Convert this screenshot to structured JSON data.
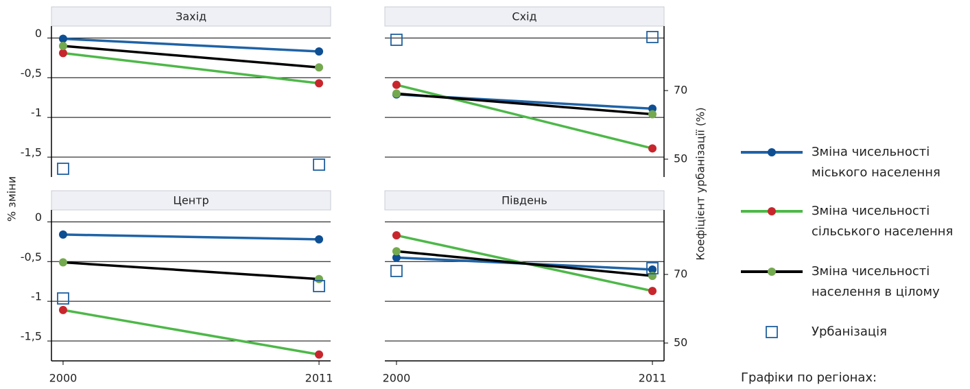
{
  "ylabel": "% зміни",
  "y2label": "Коефіцієнт урбанізації (%)",
  "legend_title": "Графіки по регіонах:",
  "chart_data": [
    {
      "type": "line",
      "title": "Захід",
      "x": [
        2000,
        2011
      ],
      "xlim": [
        1999.5,
        2011.5
      ],
      "ylim": [
        -1.75,
        0.15
      ],
      "yticks": [
        0,
        {
          "value": -0.5,
          "label": "-0,5"
        },
        -1,
        {
          "value": -1.5,
          "label": "-1,5"
        }
      ],
      "y2lim": [
        44.8,
        88.8
      ],
      "grid": true,
      "series": [
        {
          "name": "Зміна чисельності міського населення",
          "color": "#1f63a6",
          "marker_color": "#0e4f94",
          "marker": "circle",
          "values": [
            -0.01,
            -0.17
          ]
        },
        {
          "name": "Зміна чисельності сільського населення",
          "color": "#4db848",
          "marker_color": "#c8262d",
          "marker": "circle",
          "values": [
            -0.19,
            -0.57
          ]
        },
        {
          "name": "Зміна чисельності населення в цілому",
          "color": "#000000",
          "marker_color": "#74a94f",
          "marker": "circle",
          "values": [
            -0.1,
            -0.37
          ]
        },
        {
          "name": "Урбанізація",
          "marker_color": "#1f5f9e",
          "marker": "square",
          "axis": "y2",
          "values": [
            47.2,
            48.4
          ]
        }
      ]
    },
    {
      "type": "line",
      "title": "Схід",
      "x": [
        2000,
        2011
      ],
      "xlim": [
        1999.5,
        2011.5
      ],
      "ylim": [
        -1.75,
        0.15
      ],
      "yticks": [
        0,
        -0.5,
        -1,
        -1.5
      ],
      "y2lim": [
        44.8,
        88.8
      ],
      "y2ticks": [
        50,
        70
      ],
      "grid": true,
      "series": [
        {
          "name": "Зміна чисельності міського населення",
          "color": "#1f63a6",
          "marker_color": "#0e4f94",
          "marker": "circle",
          "values": [
            -0.71,
            -0.89
          ]
        },
        {
          "name": "Зміна чисельності сільського населення",
          "color": "#4db848",
          "marker_color": "#c8262d",
          "marker": "circle",
          "values": [
            -0.59,
            -1.39
          ]
        },
        {
          "name": "Зміна чисельності населення в цілому",
          "color": "#000000",
          "marker_color": "#74a94f",
          "marker": "circle",
          "values": [
            -0.7,
            -0.96
          ]
        },
        {
          "name": "Урбанізація",
          "marker_color": "#1f5f9e",
          "marker": "square",
          "axis": "y2",
          "values": [
            84.8,
            85.6
          ]
        }
      ]
    },
    {
      "type": "line",
      "title": "Центр",
      "x": [
        2000,
        2011
      ],
      "xlim": [
        1999.5,
        2011.5
      ],
      "xticks": [
        2000,
        2011
      ],
      "ylim": [
        -1.75,
        0.15
      ],
      "yticks": [
        0,
        {
          "value": -0.5,
          "label": "-0,5"
        },
        -1,
        {
          "value": -1.5,
          "label": "-1,5"
        }
      ],
      "y2lim": [
        44.8,
        88.8
      ],
      "grid": true,
      "series": [
        {
          "name": "Зміна чисельності міського населення",
          "color": "#1f63a6",
          "marker_color": "#0e4f94",
          "marker": "circle",
          "values": [
            -0.16,
            -0.22
          ]
        },
        {
          "name": "Зміна чисельності сільського населення",
          "color": "#4db848",
          "marker_color": "#c8262d",
          "marker": "circle",
          "values": [
            -1.11,
            -1.67
          ]
        },
        {
          "name": "Зміна чисельності населення в цілому",
          "color": "#000000",
          "marker_color": "#74a94f",
          "marker": "circle",
          "values": [
            -0.51,
            -0.72
          ]
        },
        {
          "name": "Урбанізація",
          "marker_color": "#1f5f9e",
          "marker": "square",
          "axis": "y2",
          "values": [
            63,
            66.6
          ]
        }
      ]
    },
    {
      "type": "line",
      "title": "Південь",
      "x": [
        2000,
        2011
      ],
      "xlim": [
        1999.5,
        2011.5
      ],
      "xticks": [
        2000,
        2011
      ],
      "ylim": [
        -1.75,
        0.15
      ],
      "yticks": [
        0,
        -0.5,
        -1,
        -1.5
      ],
      "y2lim": [
        44.8,
        88.8
      ],
      "y2ticks": [
        50,
        70
      ],
      "grid": true,
      "series": [
        {
          "name": "Зміна чисельності міського населення",
          "color": "#1f63a6",
          "marker_color": "#0e4f94",
          "marker": "circle",
          "values": [
            -0.45,
            -0.6
          ]
        },
        {
          "name": "Зміна чисельності сільського населення",
          "color": "#4db848",
          "marker_color": "#c8262d",
          "marker": "circle",
          "values": [
            -0.17,
            -0.87
          ]
        },
        {
          "name": "Зміна чисельності населення в цілому",
          "color": "#000000",
          "marker_color": "#74a94f",
          "marker": "circle",
          "values": [
            -0.37,
            -0.68
          ]
        },
        {
          "name": "Урбанізація",
          "marker_color": "#1f5f9e",
          "marker": "square",
          "axis": "y2",
          "values": [
            71,
            71.8
          ]
        }
      ]
    }
  ]
}
